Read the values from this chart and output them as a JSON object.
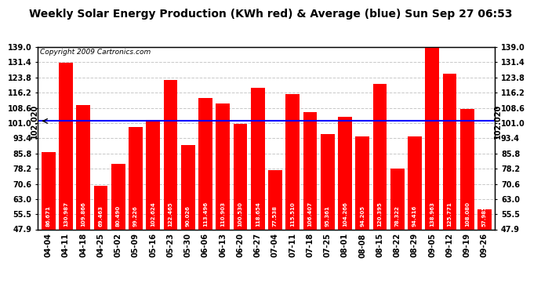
{
  "title": "Weekly Solar Energy Production (KWh red) & Average (blue) Sun Sep 27 06:53",
  "copyright": "Copyright 2009 Cartronics.com",
  "categories": [
    "04-04",
    "04-11",
    "04-18",
    "04-25",
    "05-02",
    "05-09",
    "05-16",
    "05-23",
    "05-30",
    "06-06",
    "06-13",
    "06-20",
    "06-27",
    "07-04",
    "07-11",
    "07-18",
    "07-25",
    "08-01",
    "08-08",
    "08-15",
    "08-22",
    "08-29",
    "09-05",
    "09-12",
    "09-19",
    "09-26"
  ],
  "values": [
    86.671,
    130.987,
    109.866,
    69.463,
    80.49,
    99.226,
    102.624,
    122.465,
    90.026,
    113.496,
    110.903,
    100.53,
    118.654,
    77.538,
    115.51,
    106.407,
    95.361,
    104.266,
    94.205,
    120.395,
    78.322,
    94.416,
    138.963,
    125.771,
    108.08,
    57.985
  ],
  "average": 102.02,
  "bar_color": "#ff0000",
  "average_color": "#0000ff",
  "background_color": "#ffffff",
  "plot_bg_color": "#ffffff",
  "grid_color": "#c8c8c8",
  "ylim_min": 47.9,
  "ylim_max": 139.0,
  "yticks": [
    47.9,
    55.5,
    63.0,
    70.6,
    78.2,
    85.8,
    93.4,
    101.0,
    108.6,
    116.2,
    123.8,
    131.4,
    139.0
  ],
  "avg_label": "102.020",
  "title_fontsize": 10,
  "tick_fontsize": 7,
  "bar_label_fontsize": 5,
  "copyright_fontsize": 6.5,
  "avg_label_fontsize": 7
}
